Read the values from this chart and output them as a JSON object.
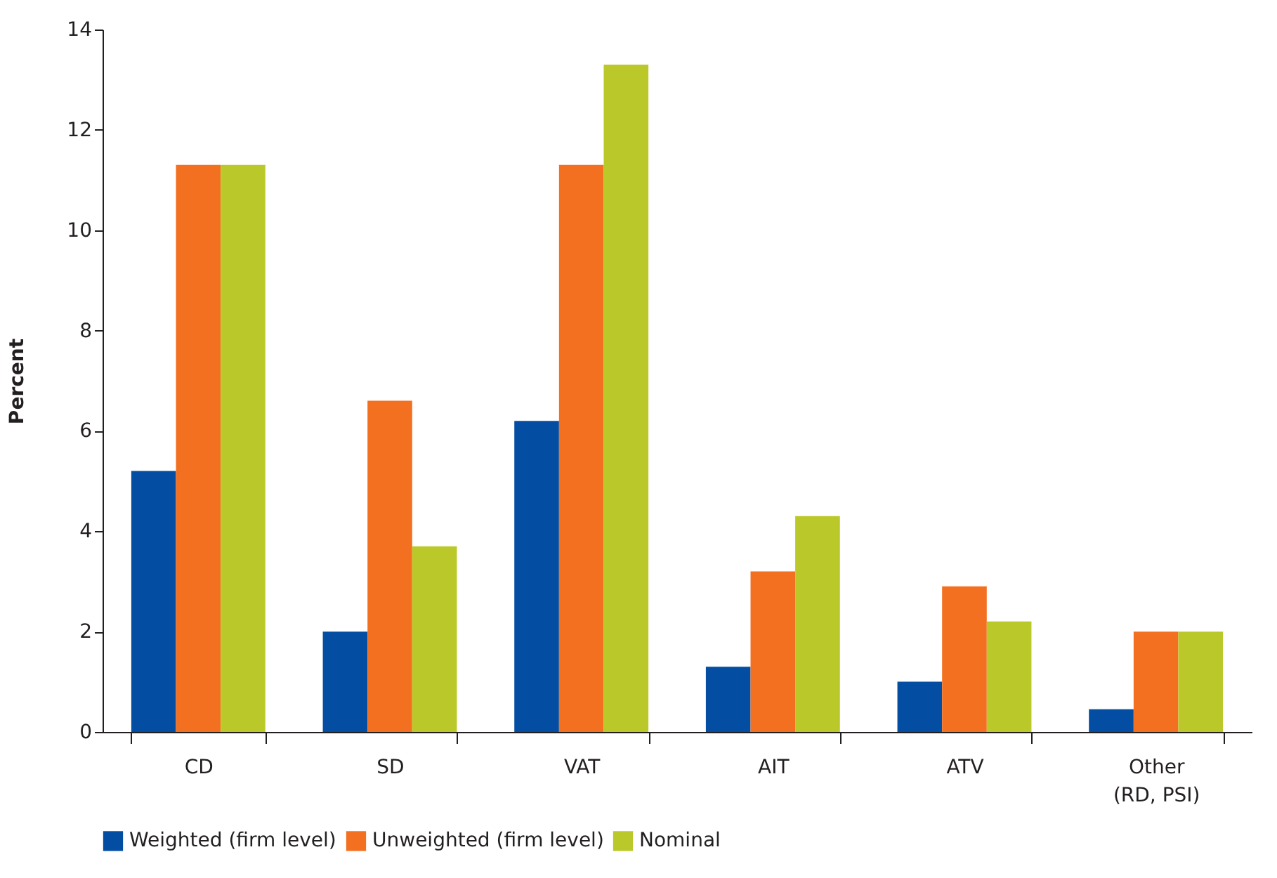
{
  "chart_data": {
    "type": "bar",
    "ylabel": "Percent",
    "categories": [
      "CD",
      "SD",
      "VAT",
      "AIT",
      "ATV",
      "Other\n(RD, PSI)"
    ],
    "series": [
      {
        "name": "Weighted (firm level)",
        "color": "#034ea2",
        "values": [
          5.2,
          2.0,
          6.2,
          1.3,
          1.0,
          0.45
        ]
      },
      {
        "name": "Unweighted (firm level)",
        "color": "#f37021",
        "values": [
          11.3,
          6.6,
          11.3,
          3.2,
          2.9,
          2.0
        ]
      },
      {
        "name": "Nominal",
        "color": "#bac929",
        "values": [
          11.3,
          3.7,
          13.3,
          4.3,
          2.2,
          2.0
        ]
      }
    ],
    "ylim": [
      0,
      14
    ],
    "yticks": [
      0,
      2,
      4,
      6,
      8,
      10,
      12,
      14
    ],
    "grid": false,
    "legend": "bottom"
  }
}
